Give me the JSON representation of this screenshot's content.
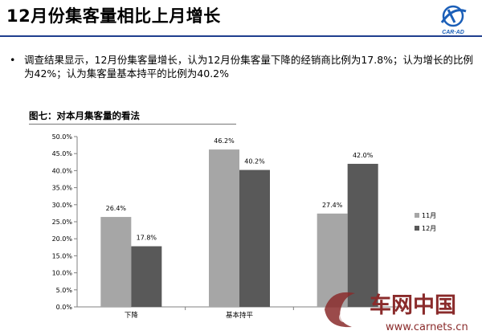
{
  "header": {
    "title": "12月份集客量相比上月增长",
    "logo_text": "CAR·AD"
  },
  "bullet": {
    "symbol": "•",
    "text": "调查结果显示，12月份集客量增长，认为12月份集客量下降的经销商比例为17.8%；认为增长的比例为42%；认为集客量基本持平的比例为40.2%"
  },
  "chart_title": "图七：对本月集客量的看法",
  "chart_data": {
    "type": "bar",
    "categories": [
      "下降",
      "基本持平",
      ""
    ],
    "series": [
      {
        "name": "11月",
        "values": [
          26.4,
          46.2,
          27.4
        ],
        "labels": [
          "26.4%",
          "46.2%",
          "27.4%"
        ],
        "color": "#a6a6a6"
      },
      {
        "name": "12月",
        "values": [
          17.8,
          40.2,
          42.0
        ],
        "labels": [
          "17.8%",
          "40.2%",
          "42.0%"
        ],
        "color": "#595959"
      }
    ],
    "ylim": [
      0,
      50
    ],
    "yticks": [
      0,
      5,
      10,
      15,
      20,
      25,
      30,
      35,
      40,
      45,
      50
    ],
    "ytick_labels": [
      "0.0%",
      "5.0%",
      "10.0%",
      "15.0%",
      "20.0%",
      "25.0%",
      "30.0%",
      "35.0%",
      "40.0%",
      "45.0%",
      "50.0%"
    ],
    "legend_position": "right",
    "grid": false
  },
  "watermark": {
    "brand_cn": "车网中国",
    "url": "www.carnets.cn"
  },
  "colors": {
    "header_rule": "#1f3f8f",
    "logo_blue": "#1b5fb8"
  }
}
